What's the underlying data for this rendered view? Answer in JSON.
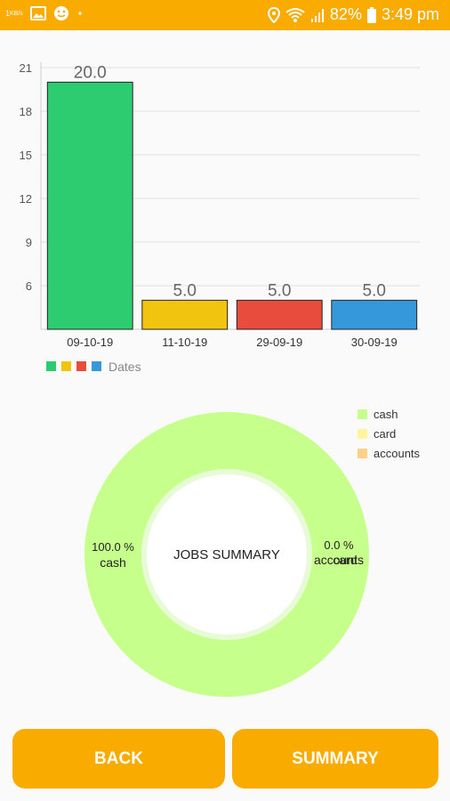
{
  "status_bar": {
    "data_rate": "1",
    "data_unit": "KB/s",
    "battery_percent": "82%",
    "time": "3:49 pm",
    "icons": [
      "image-icon",
      "smiley-icon",
      "dot-icon",
      "location-icon",
      "wifi-icon",
      "signal-icon",
      "battery-icon"
    ]
  },
  "chart_data": [
    {
      "type": "bar",
      "categories": [
        "09-10-19",
        "11-10-19",
        "29-09-19",
        "30-09-19"
      ],
      "values": [
        20.0,
        5.0,
        5.0,
        5.0
      ],
      "value_labels": [
        "20.0",
        "5.0",
        "5.0",
        "5.0"
      ],
      "colors": [
        "#2ecc71",
        "#f1c40f",
        "#e74c3c",
        "#3498db"
      ],
      "yticks": [
        "6",
        "9",
        "12",
        "15",
        "18",
        "21"
      ],
      "ylim": [
        3.0,
        21.0
      ],
      "legend": {
        "label": "Dates",
        "position": "bottom-left"
      },
      "grid": true
    },
    {
      "type": "pie",
      "center_text": "JOBS SUMMARY",
      "slices": [
        {
          "label": "cash",
          "value": 100.0,
          "value_text": "100.0 %",
          "color": "#c6ff8c"
        },
        {
          "label": "card",
          "value": 0.0,
          "color": "#fff59b"
        },
        {
          "label": "accounts",
          "value": 0.0,
          "value_text": "0.0 %",
          "color": "#ffd08a"
        }
      ],
      "legend_position": "top-right"
    }
  ],
  "buttons": {
    "back": "BACK",
    "summary": "SUMMARY"
  }
}
